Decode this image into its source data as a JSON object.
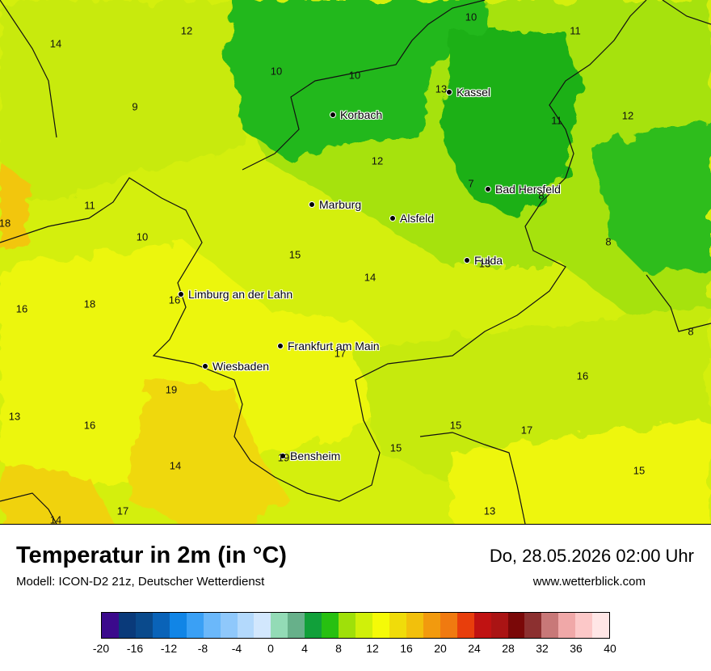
{
  "map": {
    "cities": [
      {
        "name": "Kassel"
      },
      {
        "name": "Korbach"
      },
      {
        "name": "Marburg"
      },
      {
        "name": "Alsfeld"
      },
      {
        "name": "Bad Hersfeld"
      },
      {
        "name": "Fulda"
      },
      {
        "name": "Limburg an der Lahn"
      },
      {
        "name": "Frankfurt am Main"
      },
      {
        "name": "Wiesbaden"
      },
      {
        "name": "Bensheim"
      }
    ],
    "values": [
      "10",
      "11",
      "12",
      "14",
      "10",
      "10",
      "13",
      "9",
      "11",
      "12",
      "7",
      "8",
      "11",
      "10",
      "12",
      "15",
      "14",
      "8",
      "16",
      "18",
      "16",
      "13",
      "17",
      "8",
      "19",
      "16",
      "13",
      "16",
      "15",
      "15",
      "17",
      "19",
      "14",
      "15",
      "17",
      "14",
      "13",
      "18"
    ]
  },
  "footer": {
    "title": "Temperatur in 2m (in °C)",
    "model": "Modell: ICON-D2 21z, Deutscher Wetterdienst",
    "datetime": "Do, 28.05.2026 02:00 Uhr",
    "website": "www.wetterblick.com"
  },
  "legend": {
    "colors": [
      "#3b0a8c",
      "#0a3a7a",
      "#0a4a8c",
      "#0a63b8",
      "#1185e6",
      "#3aa0f5",
      "#6bb8fa",
      "#8fc8fb",
      "#b3d9fc",
      "#d2e7fd",
      "#93dbb6",
      "#67b08a",
      "#11a03a",
      "#27c011",
      "#9fe00a",
      "#d0f00a",
      "#f5fa08",
      "#f0dc0a",
      "#f2c00c",
      "#f29a0e",
      "#f07a10",
      "#e83e0c",
      "#c01212",
      "#aa1414",
      "#7a0808",
      "#8c3030",
      "#c87878",
      "#f0a8a8",
      "#fcc8c8",
      "#ffe6e6"
    ],
    "ticks": [
      "-20",
      "-16",
      "-12",
      "-8",
      "-4",
      "0",
      "4",
      "8",
      "12",
      "16",
      "20",
      "24",
      "28",
      "32",
      "36",
      "40"
    ]
  }
}
